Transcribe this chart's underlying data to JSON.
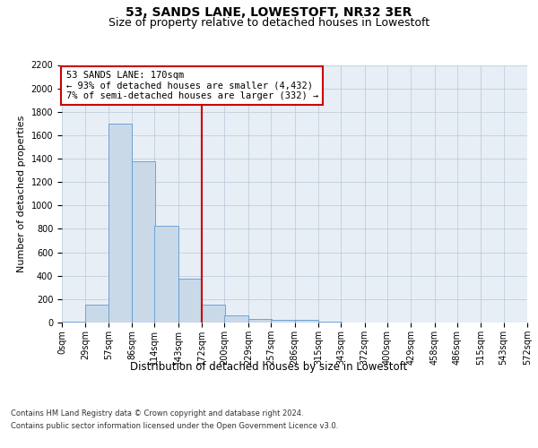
{
  "title": "53, SANDS LANE, LOWESTOFT, NR32 3ER",
  "subtitle": "Size of property relative to detached houses in Lowestoft",
  "xlabel": "Distribution of detached houses by size in Lowestoft",
  "ylabel": "Number of detached properties",
  "annotation_line1": "53 SANDS LANE: 170sqm",
  "annotation_line2": "← 93% of detached houses are smaller (4,432)",
  "annotation_line3": "7% of semi-detached houses are larger (332) →",
  "property_size_sqm": 170,
  "bin_edges": [
    0,
    29,
    57,
    86,
    114,
    143,
    172,
    200,
    229,
    257,
    286,
    315,
    343,
    372,
    400,
    429,
    458,
    486,
    515,
    543,
    572
  ],
  "bar_heights": [
    10,
    150,
    1700,
    1375,
    825,
    375,
    155,
    60,
    30,
    25,
    25,
    5,
    2,
    1,
    0,
    0,
    0,
    0,
    0,
    0
  ],
  "bar_color": "#c9d9e8",
  "bar_edge_color": "#5b9bd5",
  "vline_color": "#cc0000",
  "vline_x": 172,
  "ylim": [
    0,
    2200
  ],
  "yticks": [
    0,
    200,
    400,
    600,
    800,
    1000,
    1200,
    1400,
    1600,
    1800,
    2000,
    2200
  ],
  "background_color": "#ffffff",
  "plot_bg_color": "#e8eef5",
  "footer_line1": "Contains HM Land Registry data © Crown copyright and database right 2024.",
  "footer_line2": "Contains public sector information licensed under the Open Government Licence v3.0.",
  "title_fontsize": 10,
  "subtitle_fontsize": 9,
  "tick_label_fontsize": 7,
  "ylabel_fontsize": 8,
  "xlabel_fontsize": 8.5,
  "annotation_fontsize": 7.5,
  "footer_fontsize": 6
}
